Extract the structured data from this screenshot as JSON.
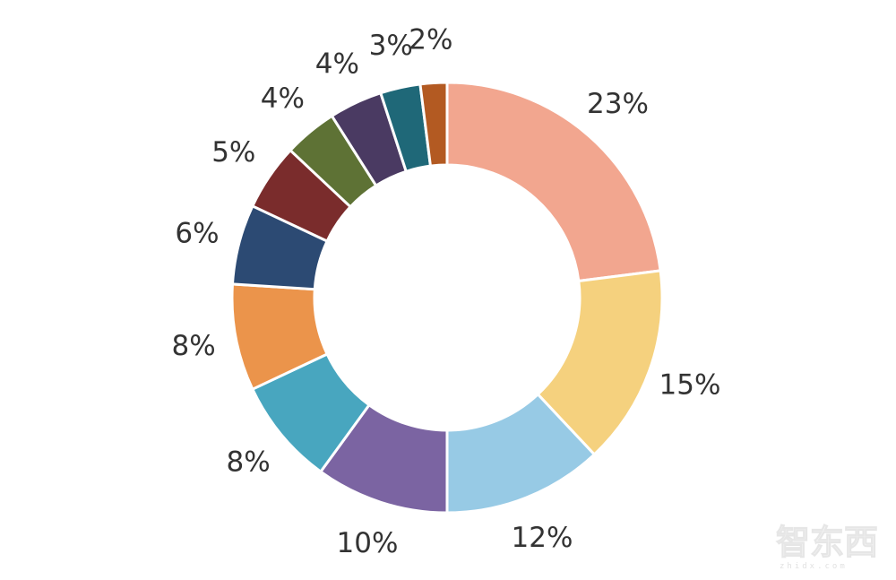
{
  "chart_data": {
    "type": "pie",
    "donut": true,
    "slices": [
      {
        "label": "23%",
        "value": 23,
        "color": "#F2A68F"
      },
      {
        "label": "15%",
        "value": 15,
        "color": "#F5D17E"
      },
      {
        "label": "12%",
        "value": 12,
        "color": "#97CAE5"
      },
      {
        "label": "10%",
        "value": 10,
        "color": "#7B64A2"
      },
      {
        "label": "8%",
        "value": 8,
        "color": "#48A6BF"
      },
      {
        "label": "8%",
        "value": 8,
        "color": "#EB944B"
      },
      {
        "label": "6%",
        "value": 6,
        "color": "#2C4A73"
      },
      {
        "label": "5%",
        "value": 5,
        "color": "#7A2C2C"
      },
      {
        "label": "4%",
        "value": 4,
        "color": "#5E7235"
      },
      {
        "label": "4%",
        "value": 4,
        "color": "#4A3A62"
      },
      {
        "label": "3%",
        "value": 3,
        "color": "#1F6878"
      },
      {
        "label": "2%",
        "value": 2,
        "color": "#B35A22"
      }
    ],
    "start": "12 o'clock",
    "direction": "clockwise",
    "legend": "none"
  },
  "watermark": {
    "text": "智东西",
    "subtext": "zhidx.com"
  }
}
